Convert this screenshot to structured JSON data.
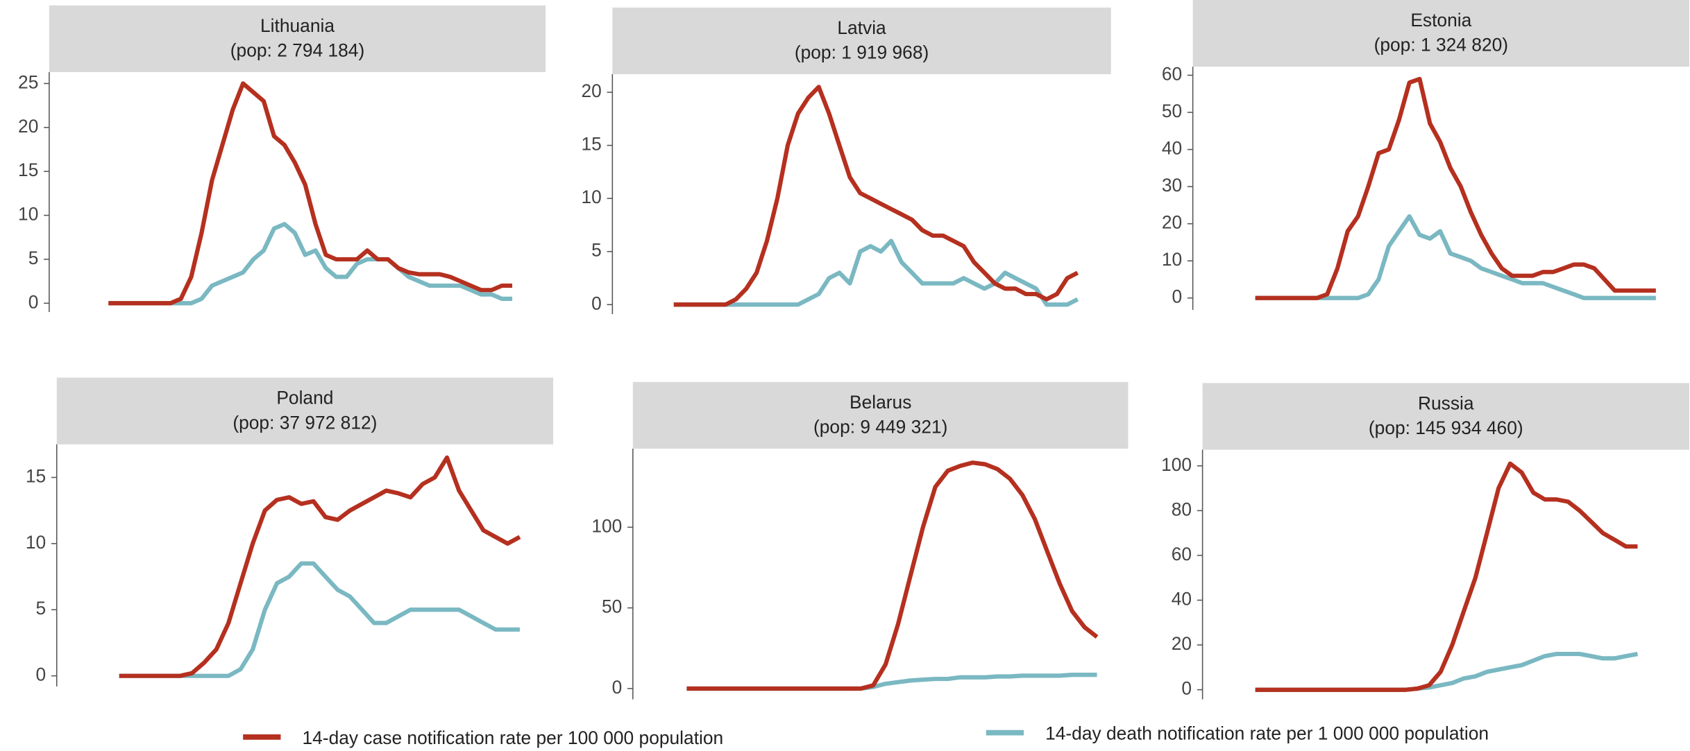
{
  "chart_data": [
    {
      "type": "line",
      "title": "Lithuania",
      "subtitle": "(pop: 2 794 184)",
      "ylim": [
        -1,
        26.3
      ],
      "yticks": [
        0,
        5,
        10,
        15,
        20,
        25
      ],
      "series": [
        {
          "name": "14-day case notification rate per 100 000 population",
          "color": "#b5301f",
          "values": [
            0,
            0,
            0,
            0,
            0,
            0,
            0,
            0.5,
            3,
            8,
            14,
            18,
            22,
            25,
            24,
            23,
            19,
            18,
            16,
            13.5,
            9,
            5.5,
            5,
            5,
            5,
            6,
            5,
            5,
            4,
            3.5,
            3.3,
            3.3,
            3.3,
            3,
            2.5,
            2,
            1.5,
            1.5,
            2,
            2
          ]
        },
        {
          "name": "14-day death notification rate per 1 000 000 population",
          "color": "#7ab8c2",
          "values": [
            0,
            0,
            0,
            0,
            0,
            0,
            0,
            0,
            0,
            0.5,
            2,
            2.5,
            3,
            3.5,
            5,
            6,
            8.5,
            9,
            8,
            5.5,
            6,
            4,
            3,
            3,
            4.5,
            5,
            5,
            5,
            4,
            3,
            2.5,
            2,
            2,
            2,
            2,
            1.5,
            1,
            1,
            0.5,
            0.5
          ]
        }
      ]
    },
    {
      "type": "line",
      "title": "Latvia",
      "subtitle": "(pop: 1 919 968)",
      "ylim": [
        -0.9,
        21.7
      ],
      "yticks": [
        0,
        5,
        10,
        15,
        20
      ],
      "series": [
        {
          "name": "14-day case notification rate per 100 000 population",
          "color": "#b5301f",
          "values": [
            0,
            0,
            0,
            0,
            0,
            0,
            0.5,
            1.5,
            3,
            6,
            10,
            15,
            18,
            19.5,
            20.5,
            18,
            15,
            12,
            10.5,
            10,
            9.5,
            9,
            8.5,
            8,
            7,
            6.5,
            6.5,
            6,
            5.5,
            4,
            3,
            2,
            1.5,
            1.5,
            1,
            1,
            0.5,
            1,
            2.5,
            3
          ]
        },
        {
          "name": "14-day death notification rate per 1 000 000 population",
          "color": "#7ab8c2",
          "values": [
            0,
            0,
            0,
            0,
            0,
            0,
            0,
            0,
            0,
            0,
            0,
            0,
            0,
            0.5,
            1,
            2.5,
            3,
            2,
            5,
            5.5,
            5,
            6,
            4,
            3,
            2,
            2,
            2,
            2,
            2.5,
            2,
            1.5,
            2,
            3,
            2.5,
            2,
            1.5,
            0,
            0,
            0,
            0.5
          ]
        }
      ]
    },
    {
      "type": "line",
      "title": "Estonia",
      "subtitle": "(pop: 1 324 820)",
      "ylim": [
        -3.2,
        62.3
      ],
      "yticks": [
        0,
        10,
        20,
        30,
        40,
        50,
        60
      ],
      "series": [
        {
          "name": "14-day case notification rate per 100 000 population",
          "color": "#b5301f",
          "values": [
            0,
            0,
            0,
            0,
            0,
            0,
            0,
            1,
            8,
            18,
            22,
            30,
            39,
            40,
            48,
            58,
            59,
            47,
            42,
            35,
            30,
            23,
            17,
            12,
            8,
            6,
            6,
            6,
            7,
            7,
            8,
            9,
            9,
            8,
            5,
            2,
            2,
            2,
            2,
            2
          ]
        },
        {
          "name": "14-day death notification rate per 1 000 000 population",
          "color": "#7ab8c2",
          "values": [
            0,
            0,
            0,
            0,
            0,
            0,
            0,
            0,
            0,
            0,
            0,
            1,
            5,
            14,
            18,
            22,
            17,
            16,
            18,
            12,
            11,
            10,
            8,
            7,
            6,
            5,
            4,
            4,
            4,
            3,
            2,
            1,
            0,
            0,
            0,
            0,
            0,
            0,
            0,
            0
          ]
        }
      ]
    },
    {
      "type": "line",
      "title": "Poland",
      "subtitle": "(pop: 37 972 812)",
      "ylim": [
        -0.8,
        17.5
      ],
      "yticks": [
        0,
        5,
        10,
        15
      ],
      "series": [
        {
          "name": "14-day case notification rate per 100 000 population",
          "color": "#b5301f",
          "values": [
            0,
            0,
            0,
            0,
            0,
            0,
            0.2,
            1,
            2,
            4,
            7,
            10,
            12.5,
            13.3,
            13.5,
            13,
            13.2,
            12,
            11.8,
            12.5,
            13,
            13.5,
            14,
            13.8,
            13.5,
            14.5,
            15,
            16.5,
            14,
            12.5,
            11,
            10.5,
            10,
            10.5
          ]
        },
        {
          "name": "14-day death notification rate per 1 000 000 population",
          "color": "#7ab8c2",
          "values": [
            0,
            0,
            0,
            0,
            0,
            0,
            0,
            0,
            0,
            0,
            0.5,
            2,
            5,
            7,
            7.5,
            8.5,
            8.5,
            7.5,
            6.5,
            6,
            5,
            4,
            4,
            4.5,
            5,
            5,
            5,
            5,
            5,
            4.5,
            4,
            3.5,
            3.5,
            3.5
          ]
        }
      ]
    },
    {
      "type": "line",
      "title": "Belarus",
      "subtitle": "(pop: 9 449 321)",
      "ylim": [
        -6.7,
        148.7
      ],
      "yticks": [
        0,
        50,
        100
      ],
      "series": [
        {
          "name": "14-day case notification rate per 100 000 population",
          "color": "#b5301f",
          "values": [
            0,
            0,
            0,
            0,
            0,
            0,
            0,
            0,
            0,
            0,
            0,
            0,
            0,
            0,
            0,
            2,
            15,
            40,
            70,
            100,
            125,
            135,
            138,
            140,
            139,
            136,
            130,
            120,
            105,
            85,
            65,
            48,
            38,
            32
          ]
        },
        {
          "name": "14-day death notification rate per 1 000 000 population",
          "color": "#7ab8c2",
          "values": [
            0,
            0,
            0,
            0,
            0,
            0,
            0,
            0,
            0,
            0,
            0,
            0,
            0,
            0,
            0,
            1,
            3,
            4,
            5,
            5.5,
            6,
            6,
            7,
            7,
            7,
            7.5,
            7.5,
            8,
            8,
            8,
            8,
            8.5,
            8.5,
            8.5
          ]
        }
      ]
    },
    {
      "type": "line",
      "title": "Russia",
      "subtitle": "(pop: 145 934 460)",
      "ylim": [
        -4.3,
        107.2
      ],
      "yticks": [
        0,
        20,
        40,
        60,
        80,
        100
      ],
      "series": [
        {
          "name": "14-day case notification rate per 100 000 population",
          "color": "#b5301f",
          "values": [
            0,
            0,
            0,
            0,
            0,
            0,
            0,
            0,
            0,
            0,
            0,
            0,
            0,
            0,
            0.5,
            2,
            8,
            20,
            35,
            50,
            70,
            90,
            101,
            97,
            88,
            85,
            85,
            84,
            80,
            75,
            70,
            67,
            64,
            64
          ]
        },
        {
          "name": "14-day death notification rate per 1 000 000 population",
          "color": "#7ab8c2",
          "values": [
            0,
            0,
            0,
            0,
            0,
            0,
            0,
            0,
            0,
            0,
            0,
            0,
            0,
            0,
            0.5,
            1,
            2,
            3,
            5,
            6,
            8,
            9,
            10,
            11,
            13,
            15,
            16,
            16,
            16,
            15,
            14,
            14,
            15,
            16
          ]
        }
      ]
    }
  ]
}
